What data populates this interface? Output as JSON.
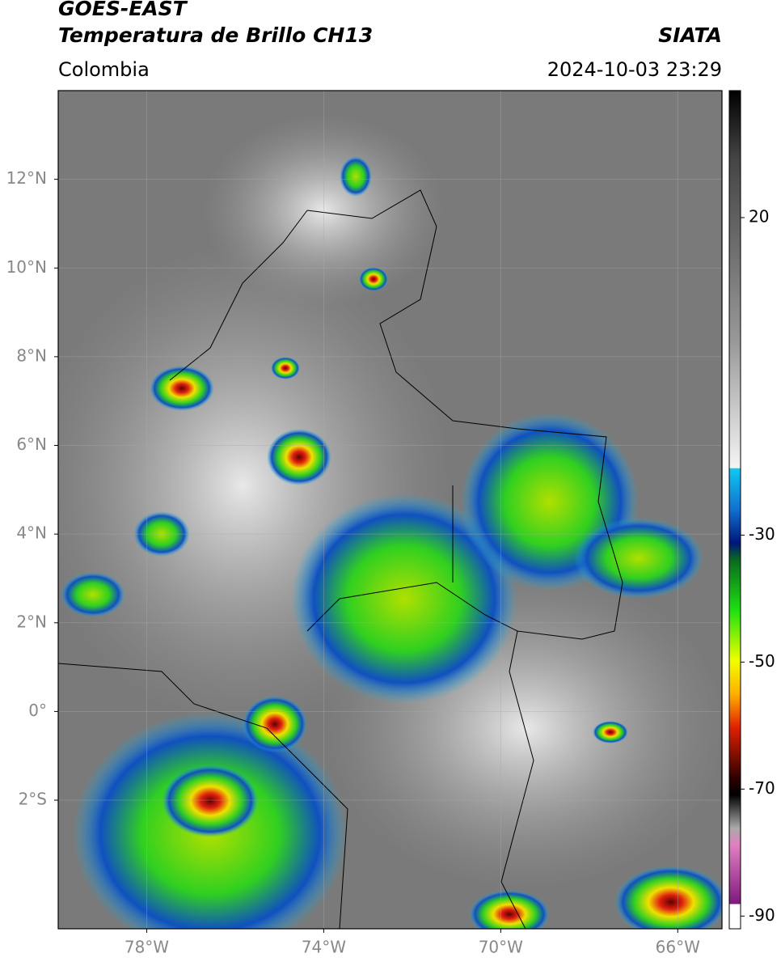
{
  "header": {
    "title": "GOES-EAST",
    "subtitle": "Temperatura de Brillo CH13",
    "source": "SIATA",
    "region": "Colombia",
    "datetime": "2024-10-03 23:29"
  },
  "map": {
    "xlim": [
      -80,
      -65
    ],
    "ylim": [
      -4.9,
      14
    ],
    "xticks": [
      {
        "value": -78,
        "label": "78°W"
      },
      {
        "value": -74,
        "label": "74°W"
      },
      {
        "value": -70,
        "label": "70°W"
      },
      {
        "value": -66,
        "label": "66°W"
      }
    ],
    "yticks": [
      {
        "value": 12,
        "label": "12°N"
      },
      {
        "value": 10,
        "label": "10°N"
      },
      {
        "value": 8,
        "label": "8°N"
      },
      {
        "value": 6,
        "label": "6°N"
      },
      {
        "value": 4,
        "label": "4°N"
      },
      {
        "value": 2,
        "label": "2°N"
      },
      {
        "value": 0,
        "label": "0°"
      },
      {
        "value": -2,
        "label": "2°S"
      }
    ],
    "grid": true
  },
  "colorbar": {
    "lim": [
      -92,
      40
    ],
    "ticks": [
      20,
      -30,
      -50,
      -70,
      -90
    ]
  }
}
